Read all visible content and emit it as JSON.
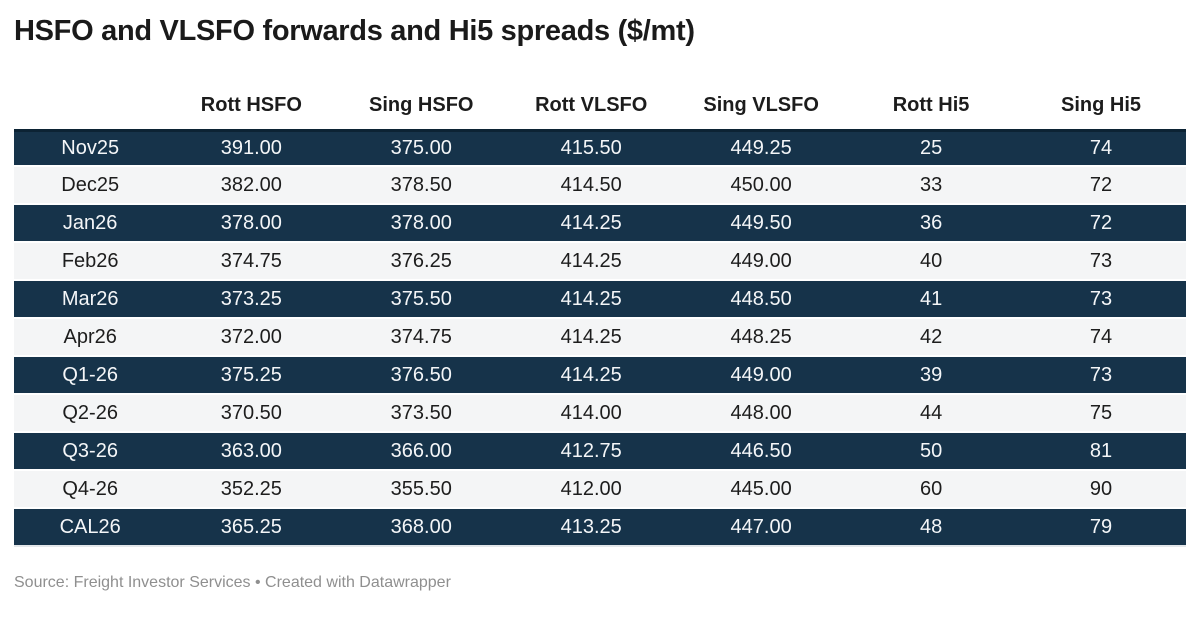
{
  "title": "HSFO and VLSFO forwards and Hi5 spreads ($/mt)",
  "chart_data": {
    "type": "table",
    "title": "HSFO and VLSFO forwards and Hi5 spreads ($/mt)",
    "unit": "$/mt",
    "columns": [
      "",
      "Rott HSFO",
      "Sing HSFO",
      "Rott VLSFO",
      "Sing VLSFO",
      "Rott Hi5",
      "Sing Hi5"
    ],
    "rows": [
      {
        "label": "Nov25",
        "values": [
          "391.00",
          "375.00",
          "415.50",
          "449.25",
          "25",
          "74"
        ]
      },
      {
        "label": "Dec25",
        "values": [
          "382.00",
          "378.50",
          "414.50",
          "450.00",
          "33",
          "72"
        ]
      },
      {
        "label": "Jan26",
        "values": [
          "378.00",
          "378.00",
          "414.25",
          "449.50",
          "36",
          "72"
        ]
      },
      {
        "label": "Feb26",
        "values": [
          "374.75",
          "376.25",
          "414.25",
          "449.00",
          "40",
          "73"
        ]
      },
      {
        "label": "Mar26",
        "values": [
          "373.25",
          "375.50",
          "414.25",
          "448.50",
          "41",
          "73"
        ]
      },
      {
        "label": "Apr26",
        "values": [
          "372.00",
          "374.75",
          "414.25",
          "448.25",
          "42",
          "74"
        ]
      },
      {
        "label": "Q1-26",
        "values": [
          "375.25",
          "376.50",
          "414.25",
          "449.00",
          "39",
          "73"
        ]
      },
      {
        "label": "Q2-26",
        "values": [
          "370.50",
          "373.50",
          "414.00",
          "448.00",
          "44",
          "75"
        ]
      },
      {
        "label": "Q3-26",
        "values": [
          "363.00",
          "366.00",
          "412.75",
          "446.50",
          "50",
          "81"
        ]
      },
      {
        "label": "Q4-26",
        "values": [
          "352.25",
          "355.50",
          "412.00",
          "445.00",
          "60",
          "90"
        ]
      },
      {
        "label": "CAL26",
        "values": [
          "365.25",
          "368.00",
          "413.25",
          "447.00",
          "48",
          "79"
        ]
      }
    ],
    "layout_hints": {
      "striped_rows": "odd rows dark navy, even rows light gray",
      "alignment": "all cells centered",
      "grid": "off"
    }
  },
  "footer": {
    "text": "Source: Freight Investor Services • Created with Datawrapper"
  },
  "colors": {
    "dark_row": "#16334a",
    "light_row": "#f4f5f6",
    "dark_row_text": "#f4f6f8",
    "body_text": "#1d1d1d",
    "footer_text": "#8f8f8f"
  }
}
